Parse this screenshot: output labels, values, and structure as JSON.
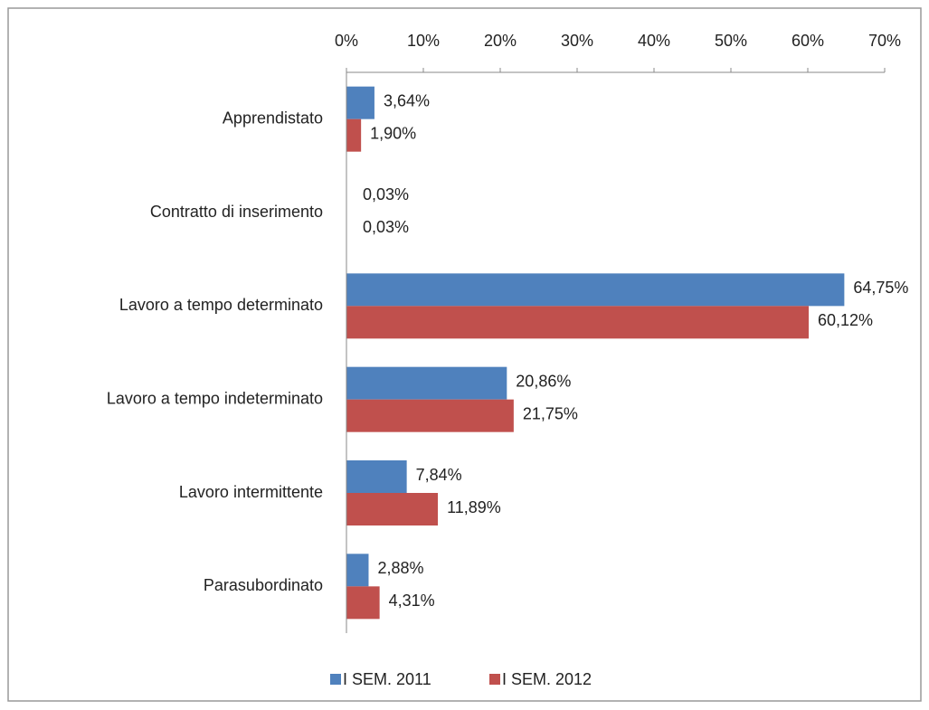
{
  "chart_data": {
    "type": "bar",
    "orientation": "horizontal",
    "categories": [
      "Apprendistato",
      "Contratto di inserimento",
      "Lavoro a tempo determinato",
      "Lavoro a tempo indeterminato",
      "Lavoro intermittente",
      "Parasubordinato"
    ],
    "series": [
      {
        "name": "I SEM. 2011",
        "color": "#4f81bd",
        "values": [
          3.64,
          0.03,
          64.75,
          20.86,
          7.84,
          2.88
        ],
        "value_labels": [
          "3,64%",
          "0,03%",
          "64,75%",
          "20,86%",
          "7,84%",
          "2,88%"
        ]
      },
      {
        "name": "I SEM. 2012",
        "color": "#c0504d",
        "values": [
          1.9,
          0.03,
          60.12,
          21.75,
          11.89,
          4.31
        ],
        "value_labels": [
          "1,90%",
          "0,03%",
          "60,12%",
          "21,75%",
          "11,89%",
          "4,31%"
        ]
      }
    ],
    "xlim": [
      0,
      70
    ],
    "xticks": [
      {
        "value": 0,
        "label": "0%"
      },
      {
        "value": 10,
        "label": "10%"
      },
      {
        "value": 20,
        "label": "20%"
      },
      {
        "value": 30,
        "label": "30%"
      },
      {
        "value": 40,
        "label": "40%"
      },
      {
        "value": 50,
        "label": "50%"
      },
      {
        "value": 60,
        "label": "60%"
      },
      {
        "value": 70,
        "label": "70%"
      }
    ],
    "legend": "bottom"
  }
}
